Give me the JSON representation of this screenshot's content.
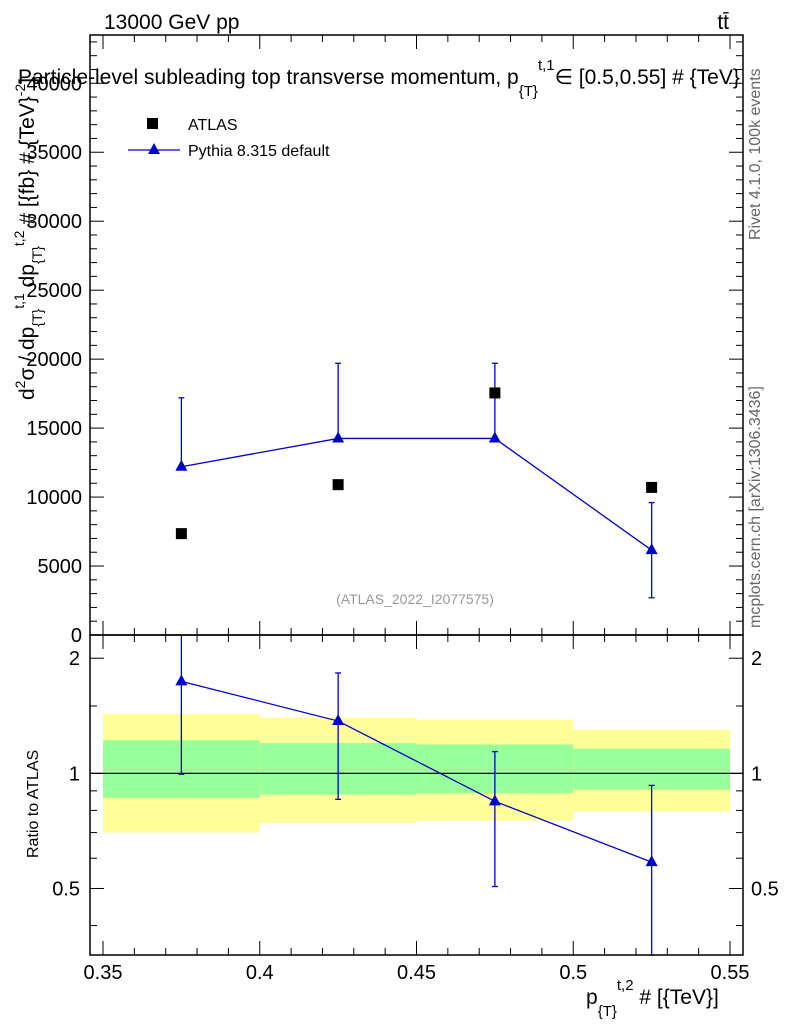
{
  "header": {
    "energy_label": "13000 GeV pp",
    "process_label": "tt̄",
    "title": "Particle-level subleading top transverse momentum, p",
    "title_sub": "{T}",
    "title_sup": "t,1",
    "title_tail": "∈ [0.5,0.55] # {TeV}",
    "side_label_top": "Rivet 4.1.0,  100k events",
    "side_label_bottom": "mcplots.cern.ch [arXiv:1306.3436]",
    "watermark": "(ATLAS_2022_I2077575)"
  },
  "colors": {
    "data": "#000000",
    "mc": "#0000cc",
    "band_inner": "#99ff99",
    "band_outer": "#ffff99"
  },
  "chart_data": [
    {
      "type": "scatter",
      "name": "main",
      "ylabel": "d²σ / dp_{T}^{t,1} dp_{T}^{t,2} # [{fb} # {TeV}^{-2}]",
      "xlim": [
        0.35,
        0.55
      ],
      "ylim": [
        0,
        43500
      ],
      "yticks": [
        0,
        5000,
        10000,
        15000,
        20000,
        25000,
        30000,
        35000,
        40000
      ],
      "ytick_labels": [
        "0",
        "5000",
        "10000",
        "15000",
        "20000",
        "25000",
        "30000",
        "35000",
        "40000"
      ],
      "legend": {
        "placement": "top-left",
        "entries": [
          "ATLAS",
          "Pythia 8.315 default"
        ]
      },
      "series": [
        {
          "name": "ATLAS",
          "marker": "square",
          "x": [
            0.375,
            0.425,
            0.475,
            0.525
          ],
          "y": [
            7350,
            10900,
            17550,
            10700
          ]
        },
        {
          "name": "Pythia 8.315 default",
          "marker": "triangle",
          "line": true,
          "x": [
            0.375,
            0.425,
            0.475,
            0.525
          ],
          "y": [
            12200,
            14250,
            14250,
            6150
          ],
          "yerr_low": [
            12200,
            14250,
            14250,
            2700
          ],
          "yerr_high": [
            17200,
            19700,
            19700,
            9600
          ]
        }
      ]
    },
    {
      "type": "scatter",
      "name": "ratio",
      "ylabel": "Ratio to ATLAS",
      "xlabel": "p_{T}^{t,2} # [{TeV}]",
      "xlim": [
        0.35,
        0.55
      ],
      "ylim": [
        0.335,
        2.3
      ],
      "xticks": [
        0.35,
        0.4,
        0.45,
        0.5,
        0.55
      ],
      "xtick_labels": [
        "0.35",
        "0.4",
        "0.45",
        "0.5",
        "0.55"
      ],
      "yticks": [
        0.5,
        1,
        2
      ],
      "ytick_labels": [
        "0.5",
        "1",
        "2"
      ],
      "bands": [
        {
          "x0": 0.35,
          "x1": 0.4,
          "inner": [
            0.863,
            1.22
          ],
          "outer": [
            0.7,
            1.43
          ]
        },
        {
          "x0": 0.4,
          "x1": 0.45,
          "inner": [
            0.88,
            1.2
          ],
          "outer": [
            0.742,
            1.4
          ]
        },
        {
          "x0": 0.45,
          "x1": 0.5,
          "inner": [
            0.887,
            1.19
          ],
          "outer": [
            0.752,
            1.38
          ]
        },
        {
          "x0": 0.5,
          "x1": 0.55,
          "inner": [
            0.906,
            1.16
          ],
          "outer": [
            0.795,
            1.3
          ]
        }
      ],
      "series": [
        {
          "name": "Pythia 8.315 default",
          "marker": "triangle",
          "line": true,
          "x": [
            0.375,
            0.425,
            0.475,
            0.525
          ],
          "y": [
            1.74,
            1.37,
            0.845,
            0.586
          ],
          "yerr_low": [
            0.995,
            0.855,
            0.506,
            0.335
          ],
          "yerr_high": [
            2.36,
            1.83,
            1.14,
            0.93
          ]
        }
      ]
    }
  ]
}
